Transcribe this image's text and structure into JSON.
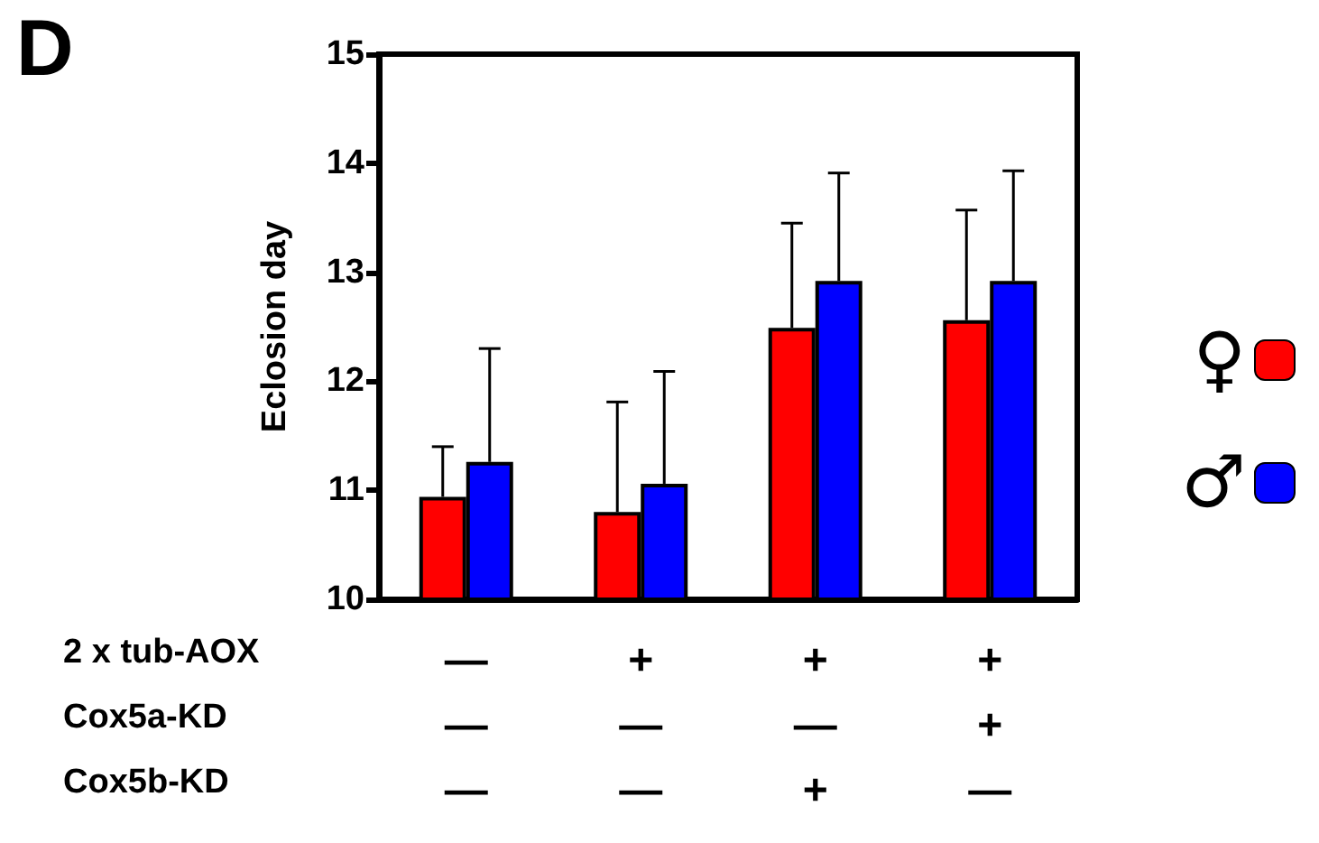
{
  "chart_data": {
    "type": "bar",
    "title": "D",
    "ylabel": "Eclosion day",
    "categories": [
      "—\n—\n—",
      "+\n—\n—",
      "+\n—\n+",
      "+\n+\n—"
    ],
    "annotations": [
      "2 x tub-AOX",
      "Cox5a-KD",
      "Cox5b-KD"
    ],
    "series": [
      {
        "name": "♀",
        "color": "#ff0000",
        "values": [
          10.94,
          10.8,
          12.49,
          12.56
        ],
        "errors": [
          [
            10.94,
            11.4
          ],
          [
            10.8,
            11.81
          ],
          [
            12.49,
            13.45
          ],
          [
            12.56,
            13.57
          ]
        ]
      },
      {
        "name": "♂",
        "color": "#0000ff",
        "values": [
          11.26,
          11.06,
          12.92,
          12.92
        ],
        "errors": [
          [
            11.26,
            12.3
          ],
          [
            11.06,
            12.09
          ],
          [
            12.92,
            13.91
          ],
          [
            12.92,
            13.93
          ]
        ]
      }
    ],
    "ylim": [
      10,
      15
    ],
    "yticks": [
      10,
      11,
      12,
      13,
      14,
      15
    ],
    "grid": false,
    "legend": "right"
  }
}
